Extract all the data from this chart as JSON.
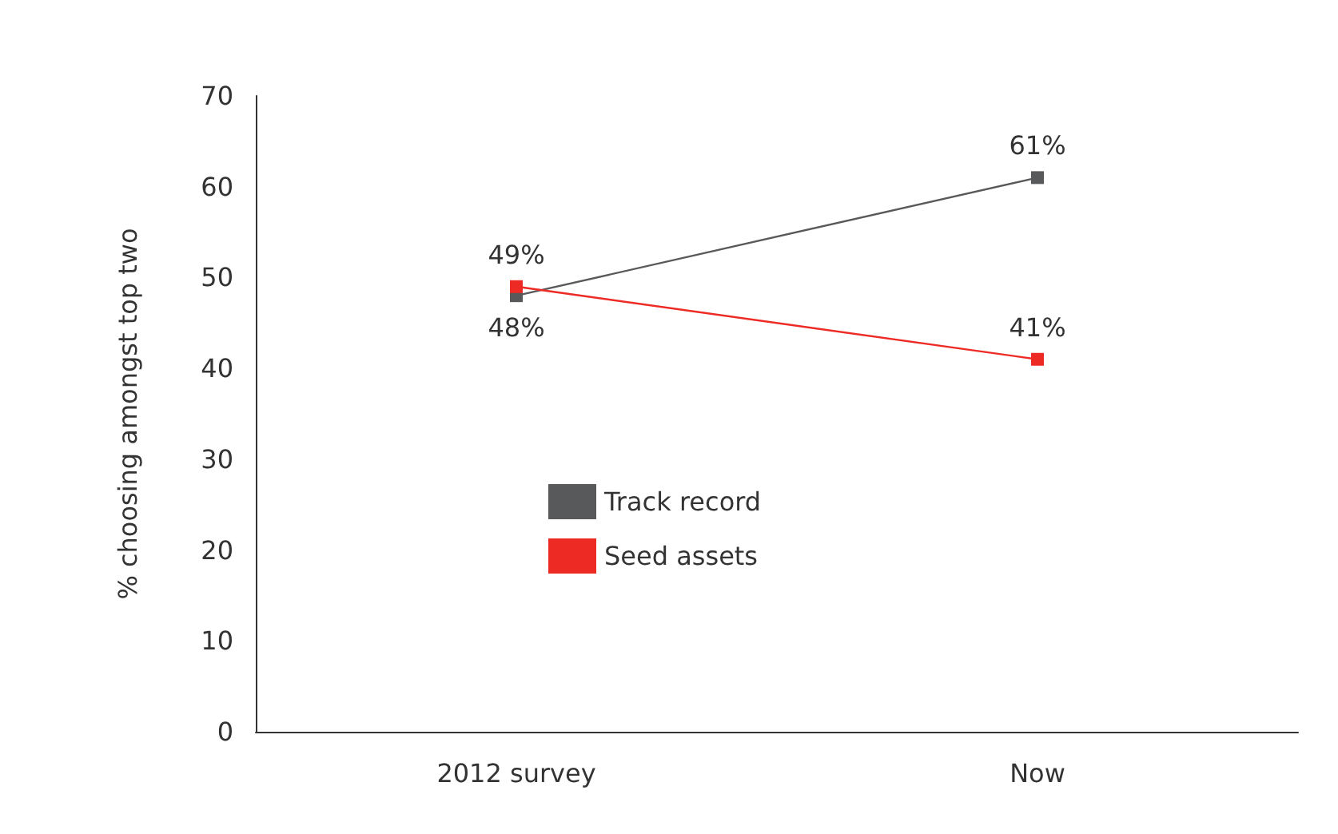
{
  "chart_data": {
    "type": "line",
    "ylabel": "% choosing amongst top two",
    "categories": [
      "2012 survey",
      "Now"
    ],
    "series": [
      {
        "name": "Track record",
        "color": "#58595b",
        "values": [
          48,
          61
        ],
        "value_labels": [
          "48%",
          "61%"
        ]
      },
      {
        "name": "Seed assets",
        "color": "#ee2a24",
        "values": [
          49,
          41
        ],
        "value_labels": [
          "49%",
          "41%"
        ]
      }
    ],
    "ylim": [
      0,
      70
    ],
    "yticks": [
      0,
      10,
      20,
      30,
      40,
      50,
      60,
      70
    ],
    "grid": false,
    "legend": "center",
    "marker": "square",
    "line_style": "solid"
  }
}
